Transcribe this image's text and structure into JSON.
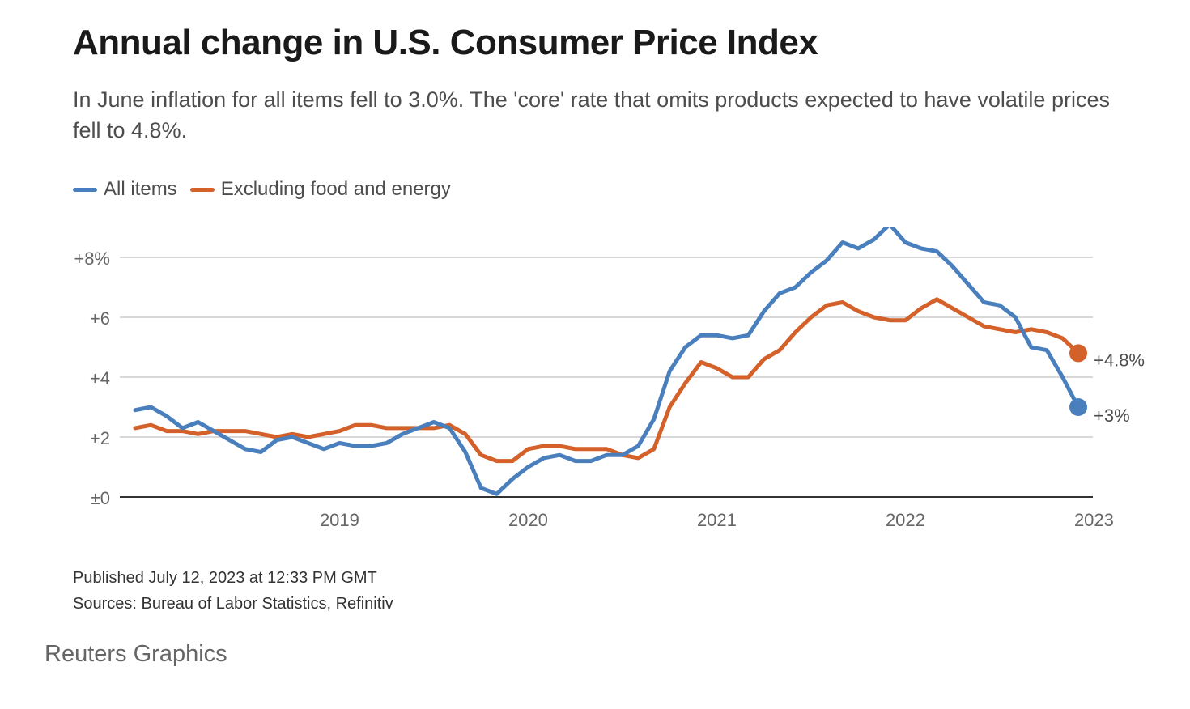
{
  "title": "Annual change in U.S. Consumer Price Index",
  "subtitle": "In June inflation for all items fell to 3.0%. The 'core' rate that omits products expected to have volatile prices fell to 4.8%.",
  "colors": {
    "all_items": "#4a7fbd",
    "core": "#d4602a",
    "grid": "#cccccc",
    "axis": "#333333",
    "axis_text": "#666666"
  },
  "footer": {
    "published": "Published July 12, 2023 at 12:33 PM GMT",
    "sources": "Sources: Bureau of Labor Statistics, Refinitiv"
  },
  "brand": "Reuters Graphics",
  "chart_data": {
    "type": "line",
    "title": "Annual change in U.S. Consumer Price Index",
    "xlabel": "",
    "ylabel": "",
    "xlim": [
      "2018-06",
      "2023-06"
    ],
    "ylim": [
      0,
      9.2
    ],
    "x_ticks": [
      "2019",
      "2020",
      "2021",
      "2022",
      "2023"
    ],
    "y_ticks": [
      {
        "value": 0,
        "label": "±0"
      },
      {
        "value": 2,
        "label": "+2"
      },
      {
        "value": 4,
        "label": "+4"
      },
      {
        "value": 6,
        "label": "+6"
      },
      {
        "value": 8,
        "label": "+8%"
      }
    ],
    "grid": true,
    "legend_position": "top-left",
    "x": [
      "2018-06",
      "2018-07",
      "2018-08",
      "2018-09",
      "2018-10",
      "2018-11",
      "2018-12",
      "2019-01",
      "2019-02",
      "2019-03",
      "2019-04",
      "2019-05",
      "2019-06",
      "2019-07",
      "2019-08",
      "2019-09",
      "2019-10",
      "2019-11",
      "2019-12",
      "2020-01",
      "2020-02",
      "2020-03",
      "2020-04",
      "2020-05",
      "2020-06",
      "2020-07",
      "2020-08",
      "2020-09",
      "2020-10",
      "2020-11",
      "2020-12",
      "2021-01",
      "2021-02",
      "2021-03",
      "2021-04",
      "2021-05",
      "2021-06",
      "2021-07",
      "2021-08",
      "2021-09",
      "2021-10",
      "2021-11",
      "2021-12",
      "2022-01",
      "2022-02",
      "2022-03",
      "2022-04",
      "2022-05",
      "2022-06",
      "2022-07",
      "2022-08",
      "2022-09",
      "2022-10",
      "2022-11",
      "2022-12",
      "2023-01",
      "2023-02",
      "2023-03",
      "2023-04",
      "2023-05",
      "2023-06"
    ],
    "series": [
      {
        "name": "All items",
        "end_label": "+3%",
        "values": [
          2.9,
          3.0,
          2.7,
          2.3,
          2.5,
          2.2,
          1.9,
          1.6,
          1.5,
          1.9,
          2.0,
          1.8,
          1.6,
          1.8,
          1.7,
          1.7,
          1.8,
          2.1,
          2.3,
          2.5,
          2.3,
          1.5,
          0.3,
          0.1,
          0.6,
          1.0,
          1.3,
          1.4,
          1.2,
          1.2,
          1.4,
          1.4,
          1.7,
          2.6,
          4.2,
          5.0,
          5.4,
          5.4,
          5.3,
          5.4,
          6.2,
          6.8,
          7.0,
          7.5,
          7.9,
          8.5,
          8.3,
          8.6,
          9.1,
          8.5,
          8.3,
          8.2,
          7.7,
          7.1,
          6.5,
          6.4,
          6.0,
          5.0,
          4.9,
          4.0,
          3.0
        ]
      },
      {
        "name": "Excluding food and energy",
        "end_label": "+4.8%",
        "values": [
          2.3,
          2.4,
          2.2,
          2.2,
          2.1,
          2.2,
          2.2,
          2.2,
          2.1,
          2.0,
          2.1,
          2.0,
          2.1,
          2.2,
          2.4,
          2.4,
          2.3,
          2.3,
          2.3,
          2.3,
          2.4,
          2.1,
          1.4,
          1.2,
          1.2,
          1.6,
          1.7,
          1.7,
          1.6,
          1.6,
          1.6,
          1.4,
          1.3,
          1.6,
          3.0,
          3.8,
          4.5,
          4.3,
          4.0,
          4.0,
          4.6,
          4.9,
          5.5,
          6.0,
          6.4,
          6.5,
          6.2,
          6.0,
          5.9,
          5.9,
          6.3,
          6.6,
          6.3,
          6.0,
          5.7,
          5.6,
          5.5,
          5.6,
          5.5,
          5.3,
          4.8
        ]
      }
    ]
  }
}
